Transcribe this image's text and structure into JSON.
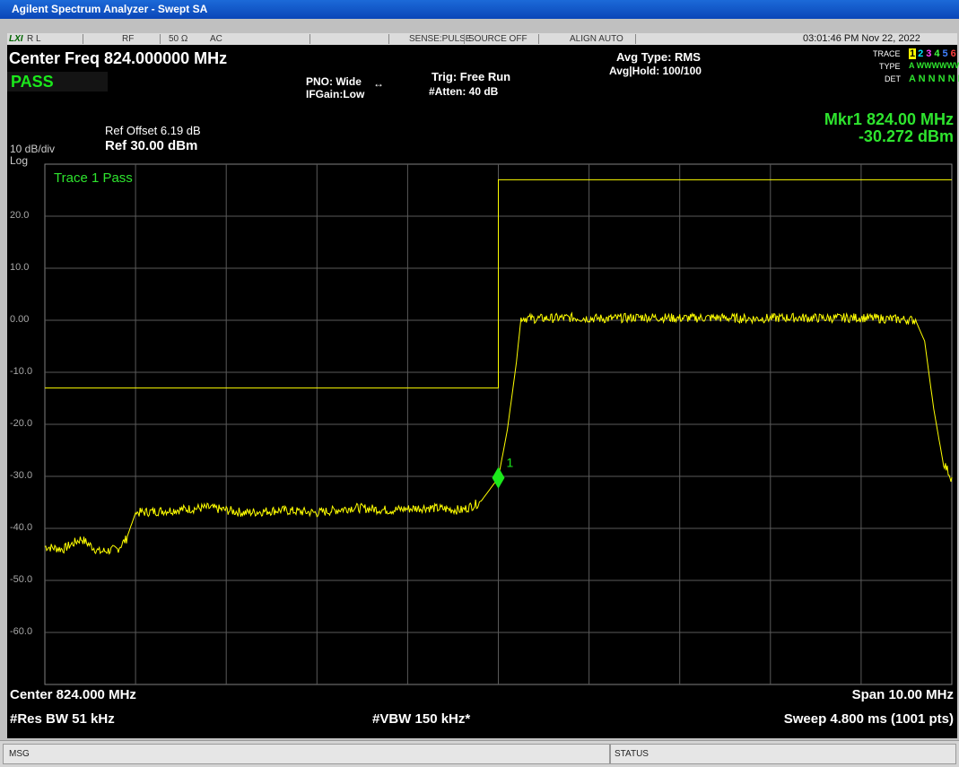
{
  "window": {
    "title": "Agilent Spectrum Analyzer - Swept SA"
  },
  "status_row": {
    "logo": "LXI",
    "rl": "R L",
    "rf": "RF",
    "impedance": "50 Ω",
    "coupling": "AC",
    "sense": "SENSE:PULSE",
    "source": "SOURCE OFF",
    "align": "ALIGN AUTO",
    "datetime": "03:01:46 PM Nov 22, 2022"
  },
  "info": {
    "center_freq": "Center Freq 824.000000 MHz",
    "pass": "PASS",
    "pno": "PNO: Wide",
    "ifgain": "IFGain:Low",
    "trig": "Trig: Free Run",
    "atten": "#Atten: 40 dB",
    "avg_type": "Avg Type: RMS",
    "avg_hold": "Avg|Hold: 100/100",
    "trace_label": "TRACE",
    "type_label": "TYPE",
    "det_label": "DET",
    "trace_numbers": [
      "1",
      "2",
      "3",
      "4",
      "5",
      "6"
    ],
    "trace_colors": [
      "#ffff00",
      "#00e5ff",
      "#ff40ff",
      "#40ff40",
      "#4080ff",
      "#ff4040"
    ],
    "type_row": "A WWWWWW",
    "det_row": "A N N N N N"
  },
  "screen": {
    "ref_offset": "Ref Offset 6.19 dB",
    "ref_level": "Ref 30.00 dBm",
    "scale": "10 dB/div",
    "log": "Log",
    "trace_status": "Trace 1 Pass",
    "marker_freq": "Mkr1 824.00 MHz",
    "marker_amp": "-30.272 dBm",
    "marker_label": "1",
    "y_tick_labels": [
      "20.0",
      "10.0",
      "0.00",
      "-10.0",
      "-20.0",
      "-30.0",
      "-40.0",
      "-50.0",
      "-60.0"
    ],
    "center": "Center 824.000 MHz",
    "span": "Span 10.00 MHz",
    "res_bw": "#Res BW 51 kHz",
    "vbw": "#VBW 150 kHz*",
    "sweep": "Sweep  4.800 ms (1001 pts)"
  },
  "chart_data": {
    "type": "line",
    "x_unit": "MHz",
    "y_unit": "dBm",
    "xlim": [
      819.0,
      829.0
    ],
    "ylim": [
      -70.0,
      30.0
    ],
    "grid": true,
    "trace_color": "#ffff00",
    "limit_color": "#ffff00",
    "series": [
      {
        "x": [
          819.0,
          819.2,
          819.4,
          819.6,
          819.8,
          819.9,
          820.0,
          820.4,
          820.8,
          821.2,
          821.6,
          822.0,
          822.4,
          822.8,
          823.2,
          823.6,
          823.8,
          824.0,
          824.1,
          824.2,
          824.25,
          824.4,
          824.8,
          825.2,
          825.6,
          826.0,
          826.4,
          826.8,
          827.2,
          827.6,
          828.0,
          828.4,
          828.6,
          828.7,
          828.8,
          828.9,
          829.0
        ],
        "y": [
          -43.5,
          -44.0,
          -42.0,
          -44.5,
          -44.0,
          -42.0,
          -37.0,
          -36.5,
          -36.0,
          -37.0,
          -36.5,
          -37.0,
          -36.0,
          -36.5,
          -36.0,
          -36.5,
          -35.0,
          -30.3,
          -21.0,
          -8.0,
          0.5,
          0.3,
          0.5,
          0.3,
          0.6,
          0.4,
          0.5,
          0.3,
          0.5,
          0.4,
          0.5,
          0.2,
          0.0,
          -4.0,
          -17.0,
          -27.0,
          -30.5
        ]
      }
    ],
    "limit_line": {
      "x": [
        819.0,
        824.0,
        824.0,
        829.0
      ],
      "y": [
        -13.0,
        -13.0,
        27.0,
        27.0
      ]
    },
    "marker": {
      "x": 824.0,
      "y": -30.272
    }
  },
  "bottom_bar": {
    "msg": "MSG",
    "status": "STATUS"
  }
}
